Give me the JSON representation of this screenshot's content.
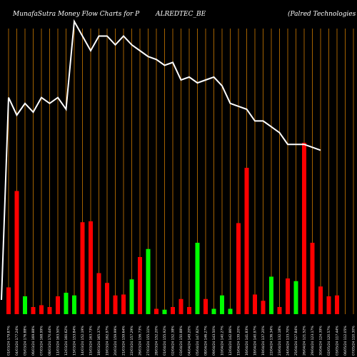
{
  "header": {
    "left": "MunafaSutra  Money Flow  Charts for P",
    "middle": "ALREDTEC_BE",
    "right": "(Palred Technologies Ltd) M"
  },
  "colors": {
    "background": "#000000",
    "up": "#00ff00",
    "down": "#ff0000",
    "gridline": "#cc7a00",
    "line": "#ffffff"
  },
  "chart_data": {
    "type": "bar",
    "title": "MunafaSutra  Money Flow  Charts for PALREDTEC_BE (Palred Technologies Ltd) M",
    "categories": [
      "01/03/24 179.87%",
      "04/03/24 177.24%",
      "05/03/24 176.88%",
      "06/03/24 169.88%",
      "07/03/24 168.99%",
      "08/03/24 170.44%",
      "11/03/24 163.50%",
      "12/03/24 160.62%",
      "13/03/24 153.84%",
      "14/03/24 152.19%",
      "15/03/24 163.73%",
      "18/03/24 165.37%",
      "19/03/24 162.97%",
      "20/03/24 159.99%",
      "21/03/24 159.64%",
      "22/03/24 157.29%",
      "26/03/24 156.73%",
      "27/03/24 155.11%",
      "28/03/24 152.20%",
      "01/04/24 155.92%",
      "02/04/24 152.38%",
      "03/04/24 150.88%",
      "04/04/24 149.20%",
      "05/04/24 147.82%",
      "08/04/24 146.27%",
      "09/04/24 143.50%",
      "10/04/24 140.27%",
      "12/04/24 142.86%",
      "15/04/24 139.20%",
      "16/04/24 141.83%",
      "18/04/24 140.97%",
      "19/04/24 137.20%",
      "22/04/24 136.34%",
      "23/04/24 132.18%",
      "24/04/24 133.70%",
      "25/04/24 127.84%",
      "26/04/24 121.52%",
      "29/04/24 123.17%",
      "30/04/24 124.39%",
      "02/05/24 120.57%",
      "03/05/24 117.44%",
      "06/05/24 112.05%",
      "07/05/24 110.30%"
    ],
    "bar_colors": [
      "down",
      "down",
      "green",
      "down",
      "down",
      "down",
      "down",
      "green",
      "green",
      "down",
      "down",
      "down",
      "down",
      "down",
      "down",
      "green",
      "down",
      "green",
      "down",
      "green",
      "down",
      "down",
      "down",
      "green",
      "down",
      "green",
      "green",
      "green",
      "down",
      "down",
      "down",
      "down",
      "green",
      "down",
      "down",
      "green",
      "down",
      "down",
      "down",
      "down",
      "down",
      "down",
      "green"
    ],
    "volumes": [
      30,
      138,
      20,
      8,
      10,
      8,
      20,
      24,
      21,
      103,
      104,
      46,
      35,
      21,
      22,
      39,
      64,
      73,
      6,
      5,
      8,
      17,
      8,
      80,
      17,
      6,
      21,
      6,
      102,
      164,
      22,
      15,
      42,
      8,
      40,
      37,
      192,
      80,
      31,
      20,
      21,
      0,
      0
    ],
    "price_line": [
      74,
      68,
      72,
      69,
      74,
      72,
      74,
      70,
      100,
      95,
      90,
      95,
      95,
      92,
      95,
      92,
      90,
      88,
      87,
      85,
      86,
      80,
      81,
      79,
      80,
      81,
      78,
      72,
      71,
      70,
      66,
      66,
      64,
      62,
      58,
      58,
      58,
      57,
      56,
      0,
      0,
      0,
      0
    ],
    "xlabel": "",
    "ylabel": ""
  }
}
